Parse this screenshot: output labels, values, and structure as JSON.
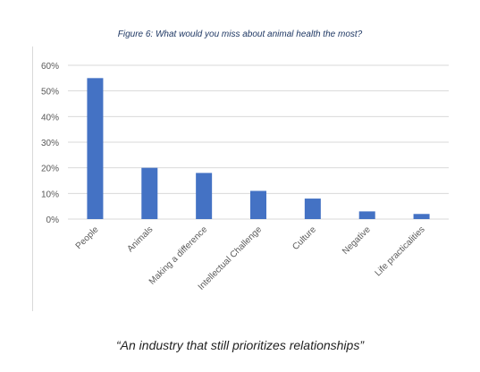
{
  "figure": {
    "title": "Figure 6: What would you miss about animal health the most?",
    "caption": "“An industry that still prioritizes relationships”"
  },
  "colors": {
    "bar": "#4472c4",
    "grid": "#d9d9d9",
    "tick_text": "#595959",
    "title_text": "#1f3864"
  },
  "chart_data": {
    "type": "bar",
    "categories": [
      "People",
      "Animals",
      "Making a difference",
      "Intellectual Challenge",
      "Culture",
      "Negative",
      "Life practicalities"
    ],
    "values": [
      55,
      20,
      18,
      11,
      8,
      3,
      2
    ],
    "title": "Figure 6: What would you miss about animal health the most?",
    "xlabel": "",
    "ylabel": "",
    "ylim": [
      0,
      60
    ],
    "yticks": [
      "0%",
      "10%",
      "20%",
      "30%",
      "40%",
      "50%",
      "60%"
    ],
    "grid": true,
    "legend": "none"
  }
}
